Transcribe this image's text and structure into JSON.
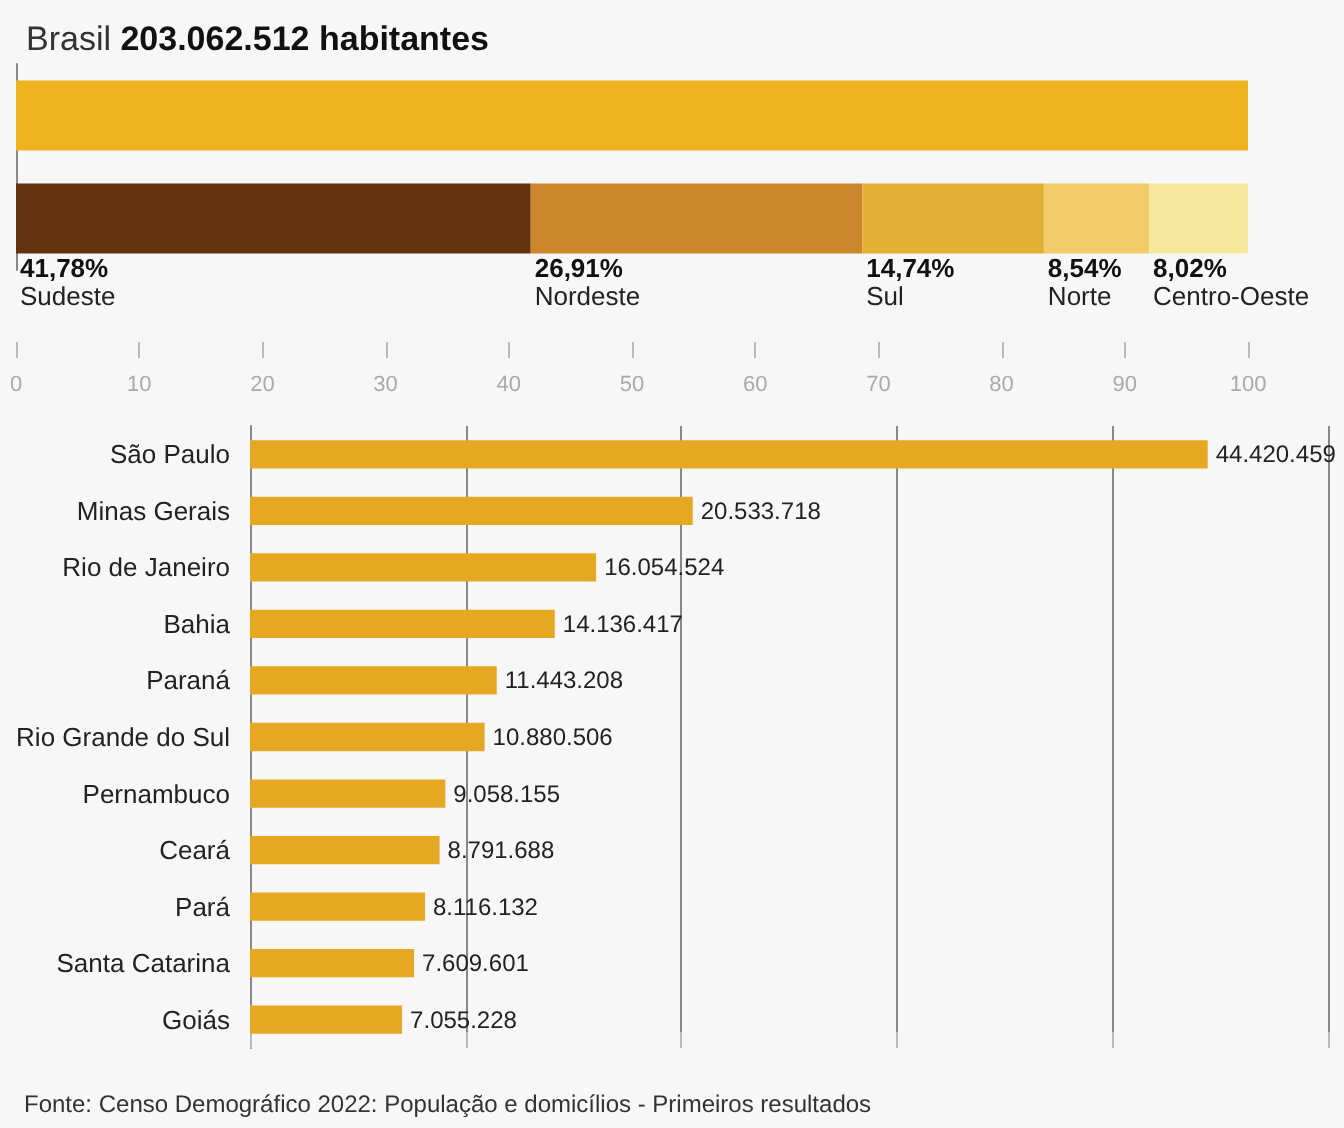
{
  "chart_data": [
    {
      "type": "bar",
      "title": "Brasil 203.062.512 habitantes",
      "orientation": "horizontal",
      "stacked": true,
      "categories": [
        null,
        null
      ],
      "series": [
        {
          "color": "#efb320",
          "values": [
            100,
            null
          ]
        },
        {
          "name": "Sudeste",
          "color": "#633210",
          "values": [
            null,
            41.78
          ],
          "value_labels": [
            null,
            "41,78%"
          ]
        },
        {
          "name": "Nordeste",
          "color": "#cc862c",
          "values": [
            null,
            26.91
          ],
          "value_labels": [
            null,
            "26,91%"
          ]
        },
        {
          "name": "Sul",
          "color": "#e2b034",
          "values": [
            null,
            14.74
          ],
          "value_labels": [
            null,
            "14,74%"
          ]
        },
        {
          "name": "Norte",
          "color": "#f2cb6a",
          "values": [
            null,
            8.54
          ],
          "value_labels": [
            null,
            "8,54%"
          ]
        },
        {
          "name": "Centro-Oeste",
          "color": "#f6e89c",
          "values": [
            null,
            8.02
          ],
          "value_labels": [
            null,
            "8,02%"
          ]
        }
      ],
      "xlim": [
        0,
        100
      ],
      "xticks": [
        0,
        10,
        20,
        30,
        40,
        50,
        60,
        70,
        80,
        90,
        100
      ],
      "tick_labels": "x",
      "grid": false,
      "legend": false
    },
    {
      "type": "bar",
      "orientation": "horizontal",
      "categories": [
        "São Paulo",
        "Minas Gerais",
        "Rio de Janeiro",
        "Bahia",
        "Paraná",
        "Rio Grande do Sul",
        "Pernambuco",
        "Ceará",
        "Pará",
        "Santa Catarina",
        "Goiás"
      ],
      "values": [
        44420459,
        20533718,
        16054524,
        14136417,
        11443208,
        10880506,
        9058155,
        8791688,
        8116132,
        7609601,
        7055228
      ],
      "value_labels": [
        "44.420.459",
        "20.533.718",
        "16.054.524",
        "14.136.417",
        "11.443.208",
        "10.880.506",
        "9.058.155",
        "8.791.688",
        "8.116.132",
        "7.609.601",
        "7.055.228"
      ],
      "color": "#e6a823",
      "xlim": [
        0,
        50000000
      ],
      "xticks": [
        {
          "value": 0,
          "label": null
        },
        {
          "value": 10000000,
          "label": null
        },
        {
          "value": 20000000,
          "label": null
        },
        {
          "value": 30000000,
          "label": null
        },
        {
          "value": 40000000,
          "label": null
        },
        {
          "value": 50000000,
          "label": null
        }
      ],
      "tick_labels": "y",
      "grid": "x",
      "legend": false,
      "annotations": [
        "Fonte: Censo Demográfico 2022: População e domicílios - Primeiros resultados"
      ]
    }
  ]
}
